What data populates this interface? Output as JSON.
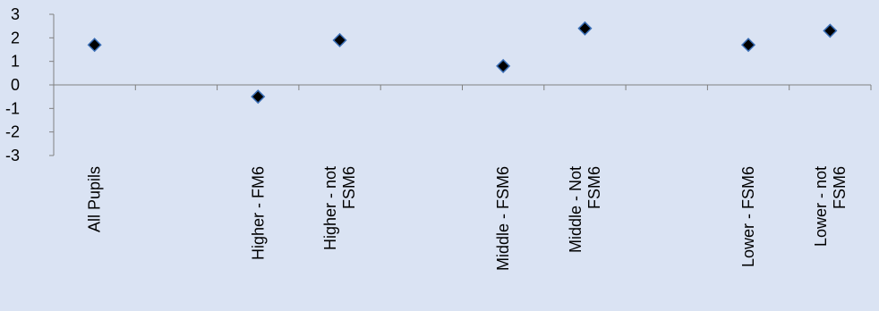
{
  "colors": {
    "background": "#dae3f3",
    "axis": "#808080",
    "marker_fill": "#000000",
    "marker_stroke": "#3b6fb6"
  },
  "chart_data": {
    "type": "scatter",
    "title": "",
    "xlabel": "",
    "ylabel": "",
    "ylim": [
      -3,
      3
    ],
    "yticks": [
      "3",
      "2",
      "1",
      "0",
      "-1",
      "-2",
      "-3"
    ],
    "grid": false,
    "legend": "none",
    "marker": "diamond",
    "categories": [
      {
        "lines": [
          "All Pupils"
        ]
      },
      {
        "lines": [
          ""
        ]
      },
      {
        "lines": [
          "Higher - FM6"
        ]
      },
      {
        "lines": [
          "Higher - not",
          "FSM6"
        ]
      },
      {
        "lines": [
          ""
        ]
      },
      {
        "lines": [
          "Middle - FSM6"
        ]
      },
      {
        "lines": [
          "Middle - Not",
          "FSM6"
        ]
      },
      {
        "lines": [
          ""
        ]
      },
      {
        "lines": [
          "Lower - FSM6"
        ]
      },
      {
        "lines": [
          "Lower - not",
          "FSM6"
        ]
      }
    ],
    "values": [
      1.7,
      null,
      -0.5,
      1.9,
      null,
      0.8,
      2.4,
      null,
      1.7,
      2.3
    ]
  }
}
